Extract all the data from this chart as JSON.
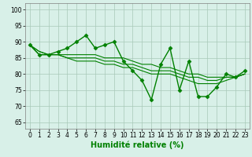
{
  "series": [
    {
      "x": [
        0,
        1,
        2,
        3,
        4,
        5,
        6,
        7,
        8,
        9,
        10,
        11,
        12,
        13,
        14,
        15,
        16,
        17,
        18,
        19,
        20,
        21,
        22,
        23
      ],
      "y": [
        89,
        86,
        86,
        87,
        88,
        90,
        92,
        88,
        89,
        90,
        84,
        81,
        78,
        72,
        83,
        88,
        75,
        84,
        73,
        73,
        76,
        80,
        79,
        81
      ],
      "color": "#008000",
      "marker": "D",
      "markersize": 2.5,
      "linewidth": 1.0
    },
    {
      "x": [
        0,
        1,
        2,
        3,
        4,
        5,
        6,
        7,
        8,
        9,
        10,
        11,
        12,
        13,
        14,
        15,
        16,
        17,
        18,
        19,
        20,
        21,
        22,
        23
      ],
      "y": [
        89,
        86,
        86,
        86,
        86,
        86,
        86,
        86,
        85,
        85,
        85,
        84,
        83,
        83,
        82,
        82,
        81,
        80,
        80,
        79,
        79,
        79,
        79,
        80
      ],
      "color": "#008000",
      "marker": null,
      "markersize": 0,
      "linewidth": 0.8
    },
    {
      "x": [
        0,
        1,
        2,
        3,
        4,
        5,
        6,
        7,
        8,
        9,
        10,
        11,
        12,
        13,
        14,
        15,
        16,
        17,
        18,
        19,
        20,
        21,
        22,
        23
      ],
      "y": [
        89,
        87,
        86,
        86,
        85,
        85,
        85,
        85,
        84,
        84,
        83,
        83,
        82,
        81,
        81,
        81,
        80,
        79,
        79,
        78,
        78,
        79,
        79,
        80
      ],
      "color": "#008000",
      "marker": null,
      "markersize": 0,
      "linewidth": 0.8
    },
    {
      "x": [
        0,
        1,
        2,
        3,
        4,
        5,
        6,
        7,
        8,
        9,
        10,
        11,
        12,
        13,
        14,
        15,
        16,
        17,
        18,
        19,
        20,
        21,
        22,
        23
      ],
      "y": [
        89,
        87,
        86,
        86,
        85,
        84,
        84,
        84,
        83,
        83,
        82,
        82,
        81,
        80,
        80,
        80,
        79,
        78,
        77,
        77,
        77,
        78,
        79,
        80
      ],
      "color": "#008000",
      "marker": null,
      "markersize": 0,
      "linewidth": 0.8
    }
  ],
  "xlabel": "Humidité relative (%)",
  "xlim": [
    -0.5,
    23.5
  ],
  "ylim": [
    63,
    102
  ],
  "yticks": [
    65,
    70,
    75,
    80,
    85,
    90,
    95,
    100
  ],
  "xticks": [
    0,
    1,
    2,
    3,
    4,
    5,
    6,
    7,
    8,
    9,
    10,
    11,
    12,
    13,
    14,
    15,
    16,
    17,
    18,
    19,
    20,
    21,
    22,
    23
  ],
  "bg_color": "#d8f0e8",
  "grid_color": "#a8c8b8",
  "line_color": "#008000",
  "xlabel_fontsize": 7,
  "tick_fontsize": 5.5
}
